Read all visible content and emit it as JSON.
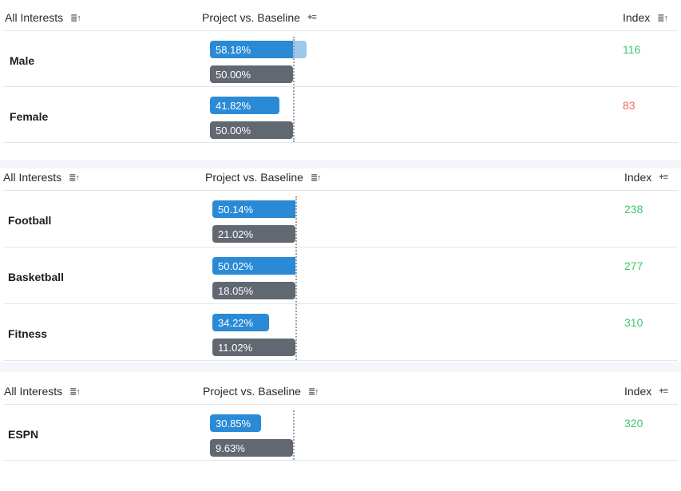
{
  "colors": {
    "project": "#2a8ad6",
    "project_track": "#9dc8ec",
    "baseline": "#626872",
    "index_positive": "#3ec66b",
    "index_negative": "#ef6a5b"
  },
  "chart_data": [
    {
      "type": "bar",
      "header": {
        "category": "All Interests",
        "bars": "Project vs. Baseline",
        "index": "Index",
        "icons": [
          "sort-desc-icon",
          "sort-asc-icon",
          "sort-desc-icon"
        ]
      },
      "rows": [
        {
          "label": "Male",
          "project": 58.18,
          "project_label": "58.18%",
          "baseline": 50.0,
          "baseline_label": "50.00%",
          "index": "116",
          "trend": "positive"
        },
        {
          "label": "Female",
          "project": 41.82,
          "project_label": "41.82%",
          "baseline": 50.0,
          "baseline_label": "50.00%",
          "index": "83",
          "trend": "negative"
        }
      ]
    },
    {
      "type": "bar",
      "header": {
        "category": "All Interests",
        "bars": "Project vs. Baseline",
        "index": "Index",
        "icons": [
          "sort-desc-icon",
          "sort-desc-icon",
          "sort-asc-icon"
        ]
      },
      "rows": [
        {
          "label": "Football",
          "project": 50.14,
          "project_label": "50.14%",
          "baseline": 21.02,
          "baseline_label": "21.02%",
          "index": "238",
          "trend": "positive"
        },
        {
          "label": "Basketball",
          "project": 50.02,
          "project_label": "50.02%",
          "baseline": 18.05,
          "baseline_label": "18.05%",
          "index": "277",
          "trend": "positive"
        },
        {
          "label": "Fitness",
          "project": 34.22,
          "project_label": "34.22%",
          "baseline": 11.02,
          "baseline_label": "11.02%",
          "index": "310",
          "trend": "positive"
        }
      ]
    },
    {
      "type": "bar",
      "header": {
        "category": "All Interests",
        "bars": "Project vs. Baseline",
        "index": "Index",
        "icons": [
          "sort-desc-icon",
          "sort-desc-icon",
          "sort-asc-icon"
        ]
      },
      "rows": [
        {
          "label": "ESPN",
          "project": 30.85,
          "project_label": "30.85%",
          "baseline": 9.63,
          "baseline_label": "9.63%",
          "index": "320",
          "trend": "positive"
        }
      ]
    }
  ]
}
